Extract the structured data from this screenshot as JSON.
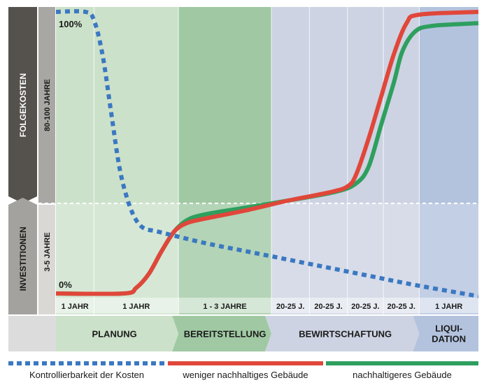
{
  "chart_data": {
    "type": "line",
    "x_unit": "lifecycle position (0 = start, 100 = end)",
    "y_unit": "percent",
    "ylim": [
      0,
      100
    ],
    "y_labels": {
      "top": "100%",
      "bottom": "0%"
    },
    "phases": [
      {
        "name": "PLANUNG",
        "start": 0,
        "end": 29,
        "color": "#c3dcc0"
      },
      {
        "name": "BEREITSTELLUNG",
        "start": 29,
        "end": 51,
        "color": "#8fbf93"
      },
      {
        "name": "BEWIRTSCHAFTUNG",
        "start": 51,
        "end": 86,
        "color": "#c4cbdd"
      },
      {
        "name": "LIQUI-\nDATION",
        "start": 86,
        "end": 100,
        "color": "#a6b8d8"
      }
    ],
    "duration_ticks": [
      {
        "label": "1 JAHR",
        "start": 0,
        "end": 9
      },
      {
        "label": "1 JAHR",
        "start": 9,
        "end": 29
      },
      {
        "label": "1 - 3 JAHRE",
        "start": 29,
        "end": 51
      },
      {
        "label": "20-25 J.",
        "start": 51,
        "end": 60
      },
      {
        "label": "20-25 J.",
        "start": 60,
        "end": 69
      },
      {
        "label": "20-25 J.",
        "start": 69,
        "end": 77.5
      },
      {
        "label": "20-25 J.",
        "start": 77.5,
        "end": 86
      },
      {
        "label": "1 JAHR",
        "start": 86,
        "end": 100
      }
    ],
    "y_sections": [
      {
        "label": "FOLGEKOSTEN",
        "sublabel": "80-100 JAHRE",
        "from": 32,
        "to": 100
      },
      {
        "label": "INVESTITIONEN",
        "sublabel": "3-5 JAHRE",
        "from": 0,
        "to": 32
      }
    ],
    "divider_value": 32,
    "series": [
      {
        "name": "Kontrollierbarkeit der Kosten",
        "color": "#3a78c2",
        "style": "dotted",
        "points": [
          [
            0,
            100
          ],
          [
            7,
            100
          ],
          [
            9,
            97
          ],
          [
            11,
            85
          ],
          [
            13,
            65
          ],
          [
            15,
            45
          ],
          [
            17,
            33
          ],
          [
            19,
            26
          ],
          [
            21,
            23
          ],
          [
            24,
            22
          ],
          [
            35,
            18
          ],
          [
            45,
            15
          ],
          [
            55,
            12
          ],
          [
            65,
            9
          ],
          [
            75,
            6
          ],
          [
            85,
            3
          ],
          [
            100,
            -1
          ]
        ]
      },
      {
        "name": "weniger nachhaltiges Gebäude",
        "color": "#e0473a",
        "style": "solid",
        "points": [
          [
            0,
            0
          ],
          [
            16,
            0
          ],
          [
            19,
            2
          ],
          [
            22,
            7
          ],
          [
            25,
            15
          ],
          [
            28,
            22
          ],
          [
            31,
            25
          ],
          [
            35,
            26.5
          ],
          [
            45,
            29.5
          ],
          [
            55,
            33
          ],
          [
            65,
            36
          ],
          [
            69,
            38
          ],
          [
            71,
            42
          ],
          [
            74,
            55
          ],
          [
            77,
            70
          ],
          [
            80,
            85
          ],
          [
            83,
            96
          ],
          [
            86,
            99
          ],
          [
            100,
            100
          ]
        ]
      },
      {
        "name": "nachhaltigeres Gebäude",
        "color": "#2e9f5e",
        "style": "solid",
        "points": [
          [
            0,
            0
          ],
          [
            16,
            0
          ],
          [
            19,
            2
          ],
          [
            22,
            7
          ],
          [
            25,
            15
          ],
          [
            28,
            22
          ],
          [
            31,
            26
          ],
          [
            35,
            28
          ],
          [
            45,
            30.5
          ],
          [
            55,
            33
          ],
          [
            66,
            36
          ],
          [
            71,
            39
          ],
          [
            74,
            45
          ],
          [
            77,
            60
          ],
          [
            80,
            75
          ],
          [
            82,
            86
          ],
          [
            85,
            93
          ],
          [
            89,
            95
          ],
          [
            100,
            96
          ]
        ]
      }
    ]
  }
}
